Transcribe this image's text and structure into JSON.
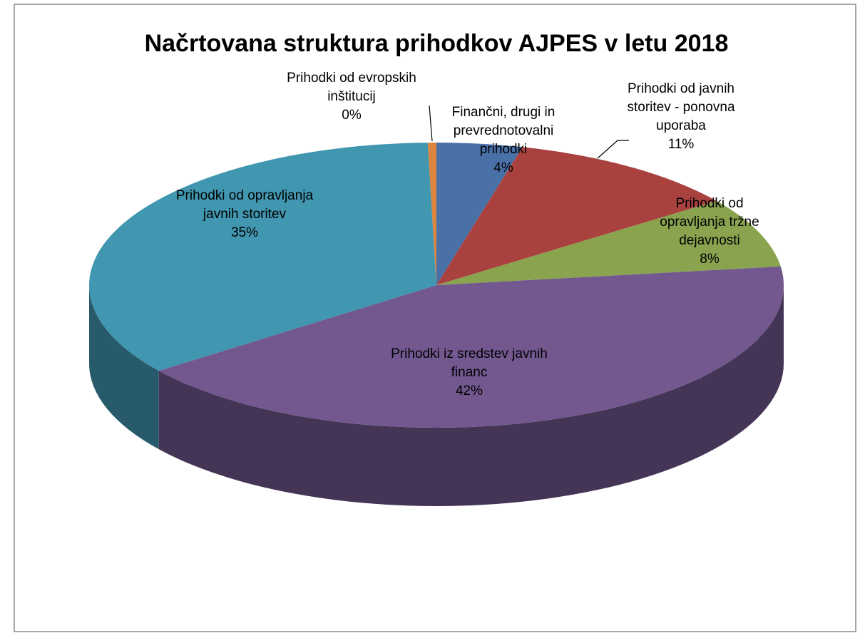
{
  "chart_data": {
    "type": "pie3d",
    "title": "Načrtovana struktura prihodkov AJPES v letu 2018",
    "categories": [
      "Finančni, drugi in prevrednotovalni prihodki",
      "Prihodki od javnih storitev - ponovna uporaba",
      "Prihodki od opravljanja tržne dejavnosti",
      "Prihodki iz sredstev javnih financ",
      "Prihodki od opravljanja javnih storitev",
      "Prihodki od evropskih inštitucij"
    ],
    "values": [
      4,
      11,
      8,
      42,
      35,
      0.4
    ],
    "value_labels": [
      "4%",
      "11%",
      "8%",
      "42%",
      "35%",
      "0%"
    ],
    "colors": [
      "#4a70a8",
      "#a9423f",
      "#89a34f",
      "#72588f",
      "#4196b0",
      "#dc853e"
    ]
  }
}
